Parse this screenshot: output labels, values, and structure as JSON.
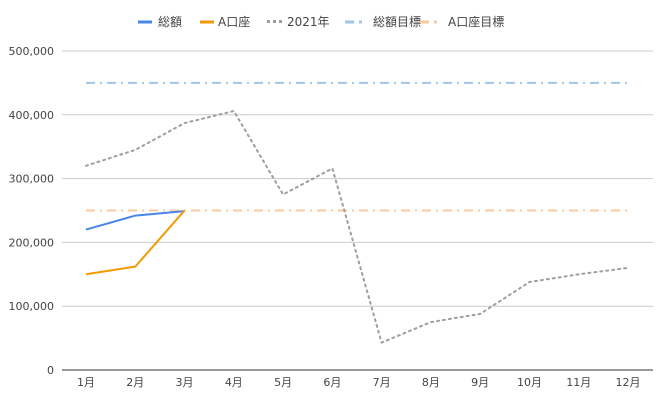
{
  "chart_data": {
    "type": "line",
    "categories": [
      "1月",
      "2月",
      "3月",
      "4月",
      "5月",
      "6月",
      "7月",
      "8月",
      "9月",
      "10月",
      "11月",
      "12月"
    ],
    "ylim": [
      0,
      500000
    ],
    "yticks": [
      0,
      100000,
      200000,
      300000,
      400000,
      500000
    ],
    "ytick_labels": [
      "0",
      "100,000",
      "200,000",
      "300,000",
      "400,000",
      "500,000"
    ],
    "grid": true,
    "legend_position": "top",
    "series": [
      {
        "name": "総額",
        "color": "#4a86e8",
        "style": "solid",
        "values": [
          220000,
          242000,
          249000,
          null,
          null,
          null,
          null,
          null,
          null,
          null,
          null,
          null
        ]
      },
      {
        "name": "A口座",
        "color": "#f29900",
        "style": "solid",
        "values": [
          150000,
          162000,
          250000,
          null,
          null,
          null,
          null,
          null,
          null,
          null,
          null,
          null
        ]
      },
      {
        "name": "2021年",
        "color": "#9e9e9e",
        "style": "dotted",
        "values": [
          320000,
          345000,
          387000,
          406000,
          275000,
          316000,
          43000,
          75000,
          88000,
          138000,
          150000,
          160000
        ]
      },
      {
        "name": "総額目標",
        "color": "#9fc5e8",
        "style": "dashdot",
        "values": [
          450000,
          450000,
          450000,
          450000,
          450000,
          450000,
          450000,
          450000,
          450000,
          450000,
          450000,
          450000
        ]
      },
      {
        "name": "A口座目標",
        "color": "#f9cb9c",
        "style": "dashdot",
        "values": [
          250000,
          250000,
          250000,
          250000,
          250000,
          250000,
          250000,
          250000,
          250000,
          250000,
          250000,
          250000
        ]
      }
    ]
  }
}
